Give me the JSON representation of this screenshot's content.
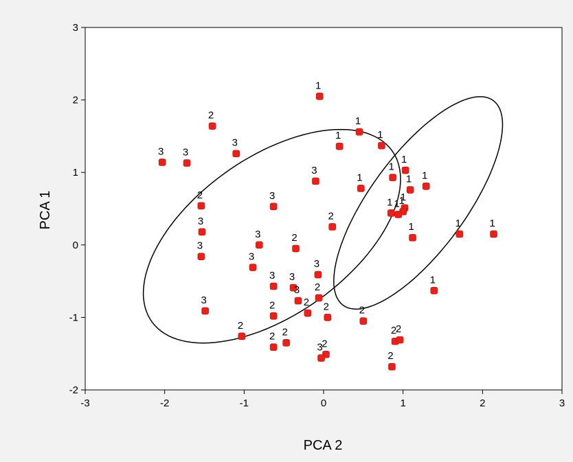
{
  "chart_data": {
    "type": "scatter",
    "title": "",
    "xlabel": "PCA 2",
    "ylabel": "PCA 1",
    "xlim": [
      -3,
      3
    ],
    "ylim": [
      -2,
      3
    ],
    "x_ticks": [
      -3,
      -2,
      -1,
      0,
      1,
      2,
      3
    ],
    "y_ticks": [
      -2,
      -1,
      0,
      1,
      2,
      3
    ],
    "grid": false,
    "legend": "none",
    "marker_color": "#e8211a",
    "points": [
      {
        "x": -0.05,
        "y": 2.05,
        "label": "1"
      },
      {
        "x": 0.2,
        "y": 1.36,
        "label": "1"
      },
      {
        "x": 0.45,
        "y": 1.56,
        "label": "1"
      },
      {
        "x": 0.73,
        "y": 1.37,
        "label": "1"
      },
      {
        "x": 1.03,
        "y": 1.03,
        "label": "1"
      },
      {
        "x": 0.87,
        "y": 0.93,
        "label": "1"
      },
      {
        "x": 1.29,
        "y": 0.81,
        "label": "1"
      },
      {
        "x": 0.47,
        "y": 0.78,
        "label": "1"
      },
      {
        "x": 1.09,
        "y": 0.76,
        "label": "1"
      },
      {
        "x": 1.02,
        "y": 0.51,
        "label": "1"
      },
      {
        "x": 1.0,
        "y": 0.46,
        "label": "1"
      },
      {
        "x": 0.85,
        "y": 0.44,
        "label": "1"
      },
      {
        "x": 0.94,
        "y": 0.42,
        "label": "1"
      },
      {
        "x": 1.12,
        "y": 0.1,
        "label": "1"
      },
      {
        "x": 1.71,
        "y": 0.15,
        "label": "1"
      },
      {
        "x": 2.14,
        "y": 0.15,
        "label": "1"
      },
      {
        "x": 1.39,
        "y": -0.63,
        "label": "1"
      },
      {
        "x": -1.4,
        "y": 1.64,
        "label": "2"
      },
      {
        "x": -1.54,
        "y": 0.54,
        "label": "2"
      },
      {
        "x": 0.11,
        "y": 0.25,
        "label": "2"
      },
      {
        "x": -0.35,
        "y": -0.05,
        "label": "2"
      },
      {
        "x": -0.06,
        "y": -0.73,
        "label": "2"
      },
      {
        "x": -0.2,
        "y": -0.94,
        "label": "2"
      },
      {
        "x": 0.05,
        "y": -1.0,
        "label": "2"
      },
      {
        "x": -0.63,
        "y": -0.98,
        "label": "2"
      },
      {
        "x": 0.5,
        "y": -1.05,
        "label": "2"
      },
      {
        "x": -1.03,
        "y": -1.26,
        "label": "2"
      },
      {
        "x": -0.63,
        "y": -1.41,
        "label": "2"
      },
      {
        "x": -0.47,
        "y": -1.35,
        "label": "2"
      },
      {
        "x": 0.03,
        "y": -1.51,
        "label": "2"
      },
      {
        "x": 0.9,
        "y": -1.33,
        "label": "2"
      },
      {
        "x": 0.96,
        "y": -1.31,
        "label": "2"
      },
      {
        "x": 0.86,
        "y": -1.68,
        "label": "2"
      },
      {
        "x": -2.03,
        "y": 1.14,
        "label": "3"
      },
      {
        "x": -1.72,
        "y": 1.13,
        "label": "3"
      },
      {
        "x": -1.1,
        "y": 1.26,
        "label": "3"
      },
      {
        "x": -0.1,
        "y": 0.88,
        "label": "3"
      },
      {
        "x": -0.63,
        "y": 0.53,
        "label": "3"
      },
      {
        "x": -1.53,
        "y": 0.18,
        "label": "3"
      },
      {
        "x": -1.54,
        "y": -0.16,
        "label": "3"
      },
      {
        "x": -0.81,
        "y": 0.0,
        "label": "3"
      },
      {
        "x": -0.89,
        "y": -0.31,
        "label": "3"
      },
      {
        "x": -0.07,
        "y": -0.41,
        "label": "3"
      },
      {
        "x": -0.63,
        "y": -0.57,
        "label": "3"
      },
      {
        "x": -0.38,
        "y": -0.59,
        "label": "3"
      },
      {
        "x": -0.32,
        "y": -0.77,
        "label": "3"
      },
      {
        "x": -1.49,
        "y": -0.91,
        "label": "3"
      },
      {
        "x": -0.03,
        "y": -1.56,
        "label": "3"
      }
    ],
    "ellipses": [
      {
        "cx": -0.65,
        "cy": 0.12,
        "rx": 1.92,
        "ry": 1.05,
        "angle_deg": 40
      },
      {
        "cx": 1.19,
        "cy": 0.58,
        "rx": 1.7,
        "ry": 0.62,
        "angle_deg": 57
      }
    ]
  }
}
